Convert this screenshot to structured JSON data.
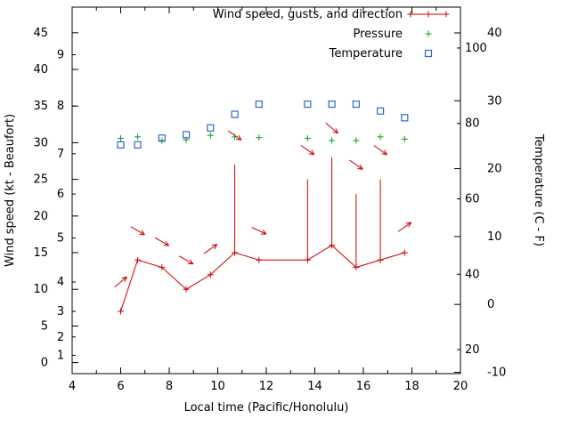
{
  "chart_data": {
    "type": "line",
    "title": "",
    "xlabel": "Local time (Pacific/Honolulu)",
    "ylabel_left": "Wind speed (kt - Beaufort)",
    "ylabel_right": "Temperature (C - F)",
    "x_range": [
      4,
      20
    ],
    "x_ticks": [
      4,
      6,
      8,
      10,
      12,
      14,
      16,
      18,
      20
    ],
    "x_minor_step": 1,
    "kt_range": [
      -1.5,
      48.5
    ],
    "kt_ticks": [
      0,
      5,
      10,
      15,
      20,
      25,
      30,
      35,
      40,
      45
    ],
    "beaufort_labels": [
      "1",
      "2",
      "3",
      "4",
      "5",
      "6",
      "7",
      "8",
      "9"
    ],
    "beaufort_kt_positions": [
      1,
      3.5,
      7,
      11,
      17,
      23,
      28.5,
      35,
      42
    ],
    "c_range": [
      -10.2,
      43.8
    ],
    "c_ticks": [
      -10,
      0,
      10,
      20,
      30,
      40
    ],
    "f_ticks": [
      20,
      40,
      60,
      80,
      100
    ],
    "x": [
      6.0,
      6.7,
      7.7,
      8.7,
      9.7,
      10.7,
      11.7,
      13.7,
      14.7,
      15.7,
      16.7,
      17.7
    ],
    "series": [
      {
        "name": "Wind speed, gusts, and direction",
        "color": "#cc0000",
        "marker": "plus-line",
        "wind_kt": [
          7,
          14,
          13,
          10,
          12,
          15,
          14,
          14,
          16,
          13,
          14,
          15
        ],
        "gust_kt": [
          7,
          14,
          13,
          10,
          12,
          27,
          14,
          25,
          28,
          23,
          25,
          15
        ]
      },
      {
        "name": "Pressure",
        "color": "#00a020",
        "marker": "plus",
        "values_kt_scale": [
          30.6,
          30.8,
          30.3,
          30.4,
          31.0,
          30.8,
          30.7,
          30.6,
          30.3,
          30.3,
          30.8,
          30.5
        ]
      },
      {
        "name": "Temperature",
        "color": "#3366cc",
        "marker": "open-square",
        "values_c": [
          23.5,
          23.5,
          24.5,
          25.0,
          26.0,
          28.0,
          29.5,
          29.5,
          29.5,
          29.5,
          28.5,
          27.5
        ]
      }
    ],
    "wind_arrows": [
      {
        "x": 6.0,
        "kt": 11.0,
        "angle_deg": 40
      },
      {
        "x": 6.7,
        "kt": 18.0,
        "angle_deg": -30
      },
      {
        "x": 7.7,
        "kt": 16.5,
        "angle_deg": -30
      },
      {
        "x": 8.7,
        "kt": 14.0,
        "angle_deg": -30
      },
      {
        "x": 9.7,
        "kt": 15.5,
        "angle_deg": 35
      },
      {
        "x": 10.7,
        "kt": 31.0,
        "angle_deg": -35
      },
      {
        "x": 11.7,
        "kt": 18.0,
        "angle_deg": -25
      },
      {
        "x": 13.7,
        "kt": 29.0,
        "angle_deg": -35
      },
      {
        "x": 14.7,
        "kt": 32.0,
        "angle_deg": -40
      },
      {
        "x": 15.7,
        "kt": 27.0,
        "angle_deg": -35
      },
      {
        "x": 16.7,
        "kt": 29.0,
        "angle_deg": -35
      },
      {
        "x": 17.7,
        "kt": 18.5,
        "angle_deg": 35
      }
    ],
    "legend": {
      "position": "top-right",
      "entries": [
        {
          "label": "Wind speed, gusts, and direction",
          "marker": "plus-line",
          "color": "#cc0000"
        },
        {
          "label": "Pressure",
          "marker": "plus",
          "color": "#00a020"
        },
        {
          "label": "Temperature",
          "marker": "open-square",
          "color": "#3366cc"
        }
      ]
    },
    "colors": {
      "axis": "#000000",
      "background": "#ffffff"
    }
  }
}
